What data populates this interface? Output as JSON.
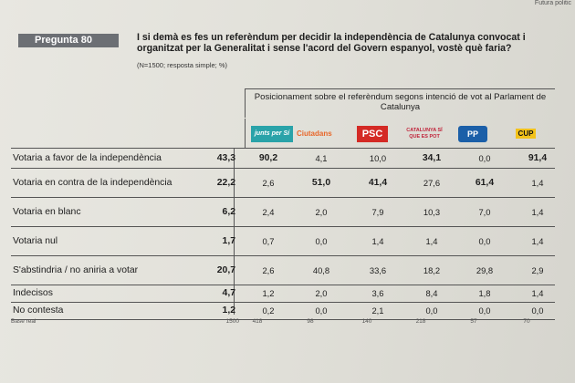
{
  "corner_text": "Futura politic",
  "tag": "Pregunta 80",
  "question": "I si demà es fes un referèndum per decidir la independència de Catalunya convocat i organitzat per la Generalitat i sense l'acord del Govern espanyol, vostè què faria?",
  "note": "(N=1500; resposta simple; %)",
  "header": "Posicionament sobre el referèndum segons intenció de vot al Parlament de Catalunya",
  "parties": [
    "junts per Sí",
    "Ciutadans",
    "PSC",
    "CATALUNYA SÍ QUE ES POT",
    "PP",
    "CUP"
  ],
  "rows": [
    {
      "label": "Votaria a favor de la independència",
      "total": "43,3",
      "values": [
        "90,2",
        "4,1",
        "10,0",
        "34,1",
        "0,0",
        "91,4"
      ]
    },
    {
      "label": "Votaria en contra de la independència",
      "total": "22,2",
      "values": [
        "2,6",
        "51,0",
        "41,4",
        "27,6",
        "61,4",
        "1,4"
      ]
    },
    {
      "label": "Votaria en blanc",
      "total": "6,2",
      "values": [
        "2,4",
        "2,0",
        "7,9",
        "10,3",
        "7,0",
        "1,4"
      ]
    },
    {
      "label": "Votaria nul",
      "total": "1,7",
      "values": [
        "0,7",
        "0,0",
        "1,4",
        "1,4",
        "0,0",
        "1,4"
      ]
    },
    {
      "label": "S'abstindria / no aniria a votar",
      "total": "20,7",
      "values": [
        "2,6",
        "40,8",
        "33,6",
        "18,2",
        "29,8",
        "2,9"
      ]
    },
    {
      "label": "Indecisos",
      "total": "4,7",
      "values": [
        "1,2",
        "2,0",
        "3,6",
        "8,4",
        "1,8",
        "1,4"
      ]
    },
    {
      "label": "No contesta",
      "total": "1,2",
      "values": [
        "0,2",
        "0,0",
        "2,1",
        "0,0",
        "0,0",
        "0,0"
      ]
    }
  ],
  "bases": {
    "label": "Base real",
    "total": "1500",
    "values": [
      "418",
      "98",
      "140",
      "218",
      "57",
      "70"
    ]
  }
}
